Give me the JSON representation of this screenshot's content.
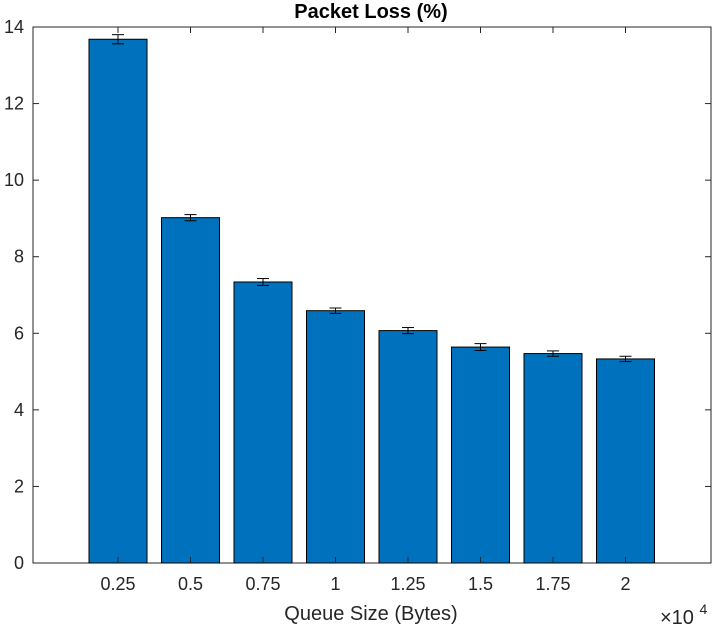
{
  "chart_data": {
    "type": "bar",
    "title": "Packet Loss (%)",
    "xlabel": "Queue Size (Bytes)",
    "ylabel": "",
    "x_multiplier_base": "×10",
    "x_multiplier_exp": "4",
    "categories": [
      "0.25",
      "0.5",
      "0.75",
      "1",
      "1.25",
      "1.5",
      "1.75",
      "2"
    ],
    "values": [
      13.68,
      9.02,
      7.34,
      6.59,
      6.07,
      5.64,
      5.47,
      5.33
    ],
    "errors": [
      0.12,
      0.08,
      0.09,
      0.07,
      0.08,
      0.09,
      0.07,
      0.07
    ],
    "ylim": [
      0,
      14
    ],
    "yticks": [
      "0",
      "2",
      "4",
      "6",
      "8",
      "10",
      "12",
      "14"
    ],
    "grid": false,
    "bar_color": "#0072BD",
    "edge_color": "#000000"
  }
}
